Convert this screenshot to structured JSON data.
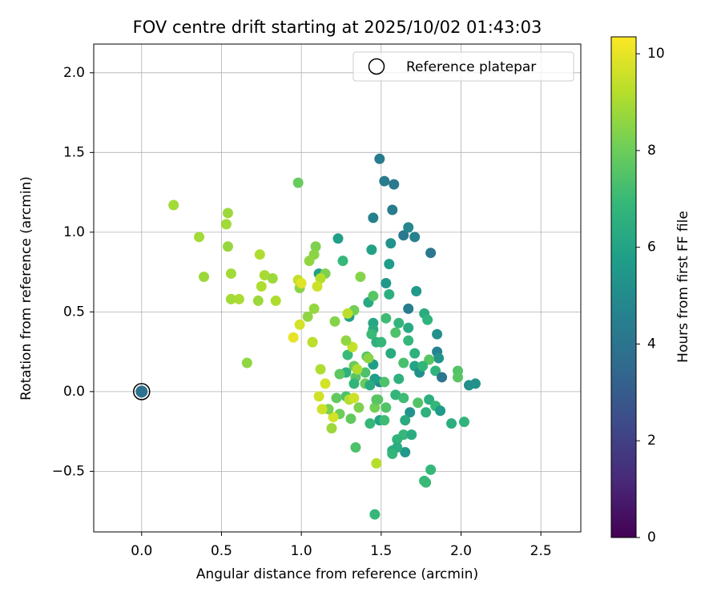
{
  "chart_data": {
    "type": "scatter",
    "title": "FOV centre drift starting at 2025/10/02 01:43:03",
    "xlabel": "Angular distance from reference (arcmin)",
    "ylabel": "Rotation from reference (arcmin)",
    "xlim": [
      -0.3,
      2.75
    ],
    "ylim": [
      -0.88,
      2.18
    ],
    "xticks": [
      0.0,
      0.5,
      1.0,
      1.5,
      2.0,
      2.5
    ],
    "yticks": [
      -0.5,
      0.0,
      0.5,
      1.0,
      1.5,
      2.0
    ],
    "xtick_labels": [
      "0.0",
      "0.5",
      "1.0",
      "1.5",
      "2.0",
      "2.5"
    ],
    "ytick_labels": [
      "−0.5",
      "0.0",
      "0.5",
      "1.0",
      "1.5",
      "2.0"
    ],
    "grid": true,
    "legend": {
      "position": "top-right",
      "label": "Reference platepar"
    },
    "colorbar": {
      "label": "Hours from first FF file",
      "range": [
        0,
        10.35
      ],
      "ticks": [
        0,
        2,
        4,
        6,
        8,
        10
      ],
      "tick_labels": [
        "0",
        "2",
        "4",
        "6",
        "8",
        "10"
      ],
      "colormap": [
        "#440154",
        "#482878",
        "#3e4989",
        "#31688e",
        "#26828e",
        "#1f9e89",
        "#35b779",
        "#6ece58",
        "#b5de2b",
        "#fde725"
      ]
    },
    "reference_point": {
      "x": 0.0,
      "y": 0.0,
      "hours": 3.9
    },
    "series": [
      {
        "name": "FOV centre drift",
        "points": [
          [
            1.49,
            1.46,
            4.3
          ],
          [
            1.52,
            1.32,
            4.3
          ],
          [
            1.58,
            1.3,
            4.2
          ],
          [
            1.57,
            1.14,
            4.3
          ],
          [
            1.45,
            1.09,
            4.5
          ],
          [
            1.67,
            1.03,
            4.8
          ],
          [
            1.71,
            0.97,
            4.6
          ],
          [
            1.64,
            0.98,
            4.2
          ],
          [
            1.81,
            0.87,
            4.1
          ],
          [
            1.23,
            0.96,
            5.8
          ],
          [
            1.44,
            0.89,
            5.9
          ],
          [
            1.56,
            0.93,
            5.3
          ],
          [
            1.55,
            0.8,
            5.7
          ],
          [
            1.26,
            0.82,
            6.9
          ],
          [
            1.11,
            0.74,
            5.8
          ],
          [
            1.53,
            0.68,
            5.5
          ],
          [
            1.72,
            0.63,
            5.6
          ],
          [
            1.55,
            0.61,
            6.5
          ],
          [
            1.42,
            0.56,
            6.2
          ],
          [
            1.45,
            0.6,
            7.6
          ],
          [
            1.67,
            0.52,
            4.4
          ],
          [
            1.77,
            0.49,
            6.4
          ],
          [
            1.79,
            0.45,
            6.7
          ],
          [
            1.3,
            0.47,
            5.9
          ],
          [
            1.45,
            0.43,
            6.1
          ],
          [
            1.53,
            0.46,
            7.1
          ],
          [
            1.61,
            0.43,
            6.8
          ],
          [
            1.67,
            0.4,
            6.3
          ],
          [
            1.85,
            0.36,
            5.2
          ],
          [
            1.45,
            0.39,
            6.3
          ],
          [
            1.44,
            0.36,
            7.0
          ],
          [
            1.47,
            0.31,
            6.6
          ],
          [
            1.59,
            0.37,
            7.4
          ],
          [
            1.67,
            0.32,
            6.9
          ],
          [
            1.85,
            0.25,
            4.6
          ],
          [
            1.71,
            0.24,
            6.6
          ],
          [
            1.56,
            0.24,
            6.3
          ],
          [
            1.5,
            0.31,
            6.9
          ],
          [
            1.41,
            0.22,
            7.5
          ],
          [
            1.29,
            0.23,
            7.0
          ],
          [
            1.86,
            0.21,
            5.4
          ],
          [
            1.8,
            0.2,
            7.6
          ],
          [
            1.64,
            0.18,
            7.3
          ],
          [
            1.45,
            0.17,
            5.8
          ],
          [
            1.4,
            0.12,
            7.4
          ],
          [
            1.33,
            0.16,
            7.9
          ],
          [
            1.28,
            0.12,
            6.6
          ],
          [
            1.24,
            0.11,
            7.7
          ],
          [
            1.71,
            0.16,
            6.0
          ],
          [
            1.74,
            0.12,
            5.2
          ],
          [
            1.76,
            0.16,
            6.8
          ],
          [
            1.84,
            0.13,
            6.7
          ],
          [
            1.98,
            0.13,
            7.5
          ],
          [
            1.88,
            0.09,
            4.1
          ],
          [
            1.98,
            0.09,
            7.6
          ],
          [
            2.05,
            0.04,
            5.1
          ],
          [
            2.09,
            0.05,
            5.2
          ],
          [
            1.61,
            0.08,
            6.6
          ],
          [
            1.49,
            0.06,
            4.8
          ],
          [
            1.46,
            0.08,
            5.8
          ],
          [
            1.4,
            0.05,
            7.9
          ],
          [
            1.43,
            0.04,
            6.3
          ],
          [
            1.34,
            0.09,
            7.6
          ],
          [
            1.33,
            0.05,
            6.8
          ],
          [
            1.52,
            0.06,
            7.4
          ],
          [
            1.59,
            -0.02,
            6.8
          ],
          [
            1.64,
            -0.04,
            7.1
          ],
          [
            1.48,
            -0.05,
            7.6
          ],
          [
            1.28,
            -0.03,
            7.4
          ],
          [
            1.22,
            -0.04,
            7.8
          ],
          [
            1.73,
            -0.07,
            7.5
          ],
          [
            1.8,
            -0.05,
            6.5
          ],
          [
            1.84,
            -0.09,
            6.9
          ],
          [
            1.87,
            -0.12,
            5.6
          ],
          [
            1.78,
            -0.13,
            6.6
          ],
          [
            1.68,
            -0.13,
            5.3
          ],
          [
            1.65,
            -0.18,
            6.3
          ],
          [
            1.53,
            -0.1,
            7.5
          ],
          [
            1.49,
            -0.18,
            6.0
          ],
          [
            1.52,
            -0.18,
            7.1
          ],
          [
            1.43,
            -0.2,
            6.9
          ],
          [
            1.46,
            -0.1,
            8.1
          ],
          [
            1.47,
            -0.05,
            7.6
          ],
          [
            1.36,
            -0.1,
            8.3
          ],
          [
            1.31,
            -0.17,
            7.8
          ],
          [
            1.3,
            -0.05,
            9.2
          ],
          [
            1.33,
            -0.04,
            9.6
          ],
          [
            1.24,
            -0.14,
            8.0
          ],
          [
            1.2,
            -0.16,
            9.7
          ],
          [
            1.17,
            -0.11,
            8.2
          ],
          [
            1.13,
            -0.11,
            9.6
          ],
          [
            1.11,
            -0.03,
            9.6
          ],
          [
            1.19,
            -0.23,
            8.8
          ],
          [
            1.34,
            -0.35,
            7.4
          ],
          [
            1.64,
            -0.27,
            6.9
          ],
          [
            1.69,
            -0.27,
            6.4
          ],
          [
            1.65,
            -0.38,
            5.5
          ],
          [
            1.6,
            -0.3,
            6.7
          ],
          [
            1.6,
            -0.35,
            6.5
          ],
          [
            1.57,
            -0.37,
            6.4
          ],
          [
            1.57,
            -0.39,
            6.8
          ],
          [
            1.94,
            -0.2,
            6.5
          ],
          [
            2.02,
            -0.19,
            6.7
          ],
          [
            1.47,
            -0.45,
            9.2
          ],
          [
            1.81,
            -0.49,
            6.9
          ],
          [
            1.77,
            -0.56,
            6.8
          ],
          [
            1.78,
            -0.57,
            7.0
          ],
          [
            1.46,
            -0.77,
            6.9
          ],
          [
            0.98,
            1.31,
            7.9
          ],
          [
            0.2,
            1.17,
            8.9
          ],
          [
            0.54,
            1.12,
            8.8
          ],
          [
            0.53,
            1.05,
            8.9
          ],
          [
            0.36,
            0.97,
            8.9
          ],
          [
            0.54,
            0.91,
            8.7
          ],
          [
            1.09,
            0.91,
            8.3
          ],
          [
            1.08,
            0.86,
            8.5
          ],
          [
            1.05,
            0.82,
            8.6
          ],
          [
            0.74,
            0.86,
            9.1
          ],
          [
            0.77,
            0.73,
            9.0
          ],
          [
            0.82,
            0.71,
            8.8
          ],
          [
            0.75,
            0.66,
            9.1
          ],
          [
            0.56,
            0.74,
            8.9
          ],
          [
            0.39,
            0.72,
            8.8
          ],
          [
            1.15,
            0.74,
            8.3
          ],
          [
            1.12,
            0.71,
            9.2
          ],
          [
            1.1,
            0.66,
            9.6
          ],
          [
            0.98,
            0.7,
            9.4
          ],
          [
            0.99,
            0.65,
            8.5
          ],
          [
            1.0,
            0.68,
            9.9
          ],
          [
            1.37,
            0.72,
            8.4
          ],
          [
            1.33,
            0.51,
            8.1
          ],
          [
            1.29,
            0.49,
            9.3
          ],
          [
            1.32,
            0.28,
            9.4
          ],
          [
            1.08,
            0.52,
            8.7
          ],
          [
            1.04,
            0.47,
            8.6
          ],
          [
            0.99,
            0.42,
            9.7
          ],
          [
            0.95,
            0.34,
            10.0
          ],
          [
            1.07,
            0.31,
            9.8
          ],
          [
            1.07,
            0.31,
            9.3
          ],
          [
            1.21,
            0.44,
            8.4
          ],
          [
            1.28,
            0.32,
            8.6
          ],
          [
            1.42,
            0.21,
            8.5
          ],
          [
            1.35,
            0.14,
            9.1
          ],
          [
            1.12,
            0.14,
            9.1
          ],
          [
            1.15,
            0.05,
            9.7
          ],
          [
            0.56,
            0.58,
            8.9
          ],
          [
            0.61,
            0.58,
            9.0
          ],
          [
            0.73,
            0.57,
            8.8
          ],
          [
            0.84,
            0.57,
            9.1
          ],
          [
            0.66,
            0.18,
            8.6
          ]
        ]
      }
    ]
  }
}
